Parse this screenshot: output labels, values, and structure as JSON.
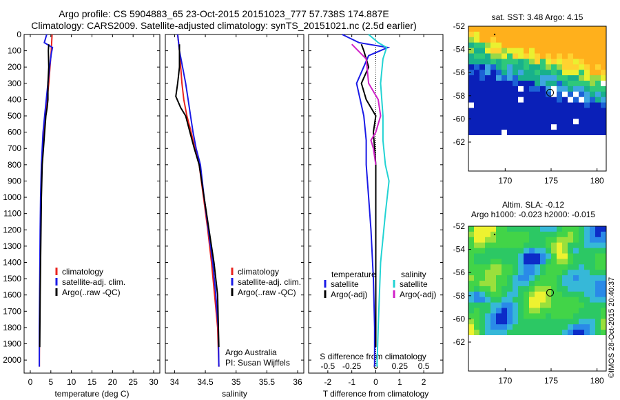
{
  "title": {
    "line1": "Argo profile: CS 5904883_65 23-Oct-2015 20151023_777 57.738S 174.887E",
    "line2": "Climatology: CARS2009. Satellite-adjusted climatology: synTS_20151021.nc (2.5d earlier)"
  },
  "colors": {
    "climatology": "#e8231e",
    "satellite": "#1a1ae6",
    "argo": "#000000",
    "sal_satellite": "#22d3d3",
    "sal_argo": "#d020c8"
  },
  "credit": "©IMOS 28-Oct-2015 20:40:37",
  "chart_data": [
    {
      "type": "line",
      "panel": "temperature",
      "xlabel": "temperature (deg C)",
      "ylabel": "",
      "xlim": [
        -1.5,
        31.5
      ],
      "ylim": [
        2080,
        0
      ],
      "xticks": [
        "0",
        "5",
        "10",
        "15",
        "20",
        "25",
        "30"
      ],
      "yticks": [
        "0",
        "100",
        "200",
        "300",
        "400",
        "500",
        "600",
        "700",
        "800",
        "900",
        "1000",
        "1100",
        "1200",
        "1300",
        "1400",
        "1500",
        "1600",
        "1700",
        "1800",
        "1900",
        "2000"
      ],
      "legend": [
        "climatology",
        "satellite-adj. clim.",
        "Argo(..raw -QC)"
      ],
      "legend_placement": "lower-middle",
      "series": [
        {
          "name": "climatology",
          "color_key": "climatology",
          "x": [
            5.3,
            5.1,
            4.8,
            4.5,
            4.1,
            3.7,
            3.3,
            3.0,
            2.8,
            2.6,
            2.5,
            2.4,
            2.3,
            2.25,
            2.2,
            2.2
          ],
          "y": [
            0,
            100,
            200,
            300,
            400,
            500,
            600,
            700,
            800,
            1000,
            1200,
            1400,
            1600,
            1800,
            2000,
            2040
          ]
        },
        {
          "name": "satellite-adj. clim.",
          "color_key": "satellite",
          "x": [
            4.0,
            3.4,
            4.1,
            5.4,
            5.1,
            4.7,
            4.3,
            3.9,
            3.5,
            3.1,
            2.9,
            2.7,
            2.5,
            2.4,
            2.3,
            2.2,
            2.2
          ],
          "y": [
            0,
            50,
            60,
            80,
            120,
            200,
            300,
            400,
            500,
            600,
            700,
            800,
            1000,
            1200,
            1500,
            1800,
            2040
          ]
        },
        {
          "name": "Argo(..raw -QC)",
          "color_key": "argo",
          "x": [
            4.5,
            4.4,
            4.5,
            4.3,
            4.3,
            4.1,
            3.8,
            3.5,
            3.2,
            2.9,
            2.7,
            2.6,
            2.5,
            2.4,
            2.3
          ],
          "y": [
            60,
            100,
            200,
            300,
            400,
            450,
            500,
            600,
            700,
            800,
            1000,
            1200,
            1400,
            1600,
            1920
          ]
        }
      ]
    },
    {
      "type": "line",
      "panel": "salinity",
      "xlabel": "salinity",
      "xlim": [
        33.85,
        36.1
      ],
      "ylim": [
        2080,
        0
      ],
      "xticks": [
        "34",
        "34.5",
        "35",
        "35.5",
        "36"
      ],
      "legend": [
        "climatology",
        "satellite-adj. clim.",
        "Argo(..raw -QC)"
      ],
      "legend_placement": "lower-right",
      "annotation": [
        "Argo Australia",
        "PI: Susan Wijffels"
      ],
      "series": [
        {
          "name": "climatology",
          "color_key": "climatology",
          "x": [
            34.05,
            34.08,
            34.1,
            34.12,
            34.15,
            34.2,
            34.27,
            34.33,
            34.4,
            34.47,
            34.54,
            34.6,
            34.65,
            34.7,
            34.72
          ],
          "y": [
            0,
            100,
            200,
            300,
            400,
            500,
            600,
            700,
            800,
            1000,
            1200,
            1400,
            1600,
            1800,
            2040
          ]
        },
        {
          "name": "satellite-adj. clim.",
          "color_key": "satellite",
          "x": [
            34.05,
            34.08,
            34.13,
            34.18,
            34.22,
            34.26,
            34.3,
            34.35,
            34.42,
            34.48,
            34.55,
            34.62,
            34.67,
            34.71,
            34.72
          ],
          "y": [
            0,
            100,
            200,
            300,
            400,
            500,
            600,
            700,
            800,
            1000,
            1200,
            1400,
            1600,
            1800,
            2040
          ]
        },
        {
          "name": "Argo(..raw -QC)",
          "color_key": "argo",
          "x": [
            34.08,
            34.08,
            34.05,
            34.02,
            34.1,
            34.18,
            34.25,
            34.32,
            34.4,
            34.48,
            34.56,
            34.64,
            34.7,
            34.72
          ],
          "y": [
            60,
            200,
            300,
            380,
            450,
            500,
            600,
            700,
            800,
            1000,
            1200,
            1400,
            1600,
            1920
          ]
        }
      ]
    },
    {
      "type": "line",
      "panel": "difference",
      "xlabel": "T difference from climatology",
      "xlabel_top": "S difference from climatology",
      "xlim": [
        -2.8,
        2.8
      ],
      "ylim": [
        2080,
        0
      ],
      "xticks": [
        "-2",
        "-1",
        "0",
        "1",
        "2"
      ],
      "xticks_top": [
        "-0.5",
        "-0.25",
        "0",
        "0.25",
        "0.5"
      ],
      "legend_groups": [
        {
          "heading": "temperature",
          "items": [
            "satellite",
            "Argo(-adj)"
          ]
        },
        {
          "heading": "salinity",
          "items": [
            "satellite",
            "Argo(-adj)"
          ]
        }
      ],
      "series": [
        {
          "name": "satellite",
          "group": "temperature",
          "color_key": "satellite",
          "x": [
            -1.4,
            -0.7,
            0.5,
            -0.3,
            -0.8,
            -0.5,
            -0.4,
            -0.4,
            -0.3,
            -0.2,
            -0.1,
            -0.05,
            -0.05
          ],
          "y": [
            0,
            50,
            80,
            130,
            300,
            500,
            650,
            800,
            1000,
            1200,
            1500,
            1800,
            2040
          ]
        },
        {
          "name": "Argo(-adj)",
          "group": "temperature",
          "color_key": "argo",
          "x": [
            -0.6,
            -0.5,
            -0.3,
            -0.6,
            -0.4,
            0.0,
            -0.1,
            0.0,
            0.0,
            0.0,
            0.0,
            0.0
          ],
          "y": [
            60,
            100,
            200,
            300,
            400,
            500,
            600,
            800,
            1000,
            1200,
            1600,
            1920
          ]
        },
        {
          "name": "satellite",
          "group": "salinity",
          "color_key": "sal_satellite",
          "x": [
            -0.3,
            0.1,
            0.45,
            0.3,
            0.2,
            0.3,
            0.3,
            0.4,
            0.55,
            0.4,
            0.2,
            0.1,
            0.05
          ],
          "y": [
            0,
            50,
            80,
            150,
            300,
            500,
            650,
            800,
            900,
            1100,
            1400,
            1800,
            2040
          ]
        },
        {
          "name": "Argo(-adj)",
          "group": "salinity",
          "color_key": "sal_argo",
          "x": [
            -1.0,
            -0.4,
            -0.3,
            0.1,
            0.2,
            0.1,
            0.0,
            -0.2,
            -0.1,
            0.0
          ],
          "y": [
            60,
            150,
            300,
            400,
            500,
            550,
            600,
            650,
            700,
            800
          ]
        }
      ]
    },
    {
      "type": "heatmap",
      "panel": "sst-map",
      "title": "sat. SST: 3.48 Argo: 4.15",
      "xlim": [
        166,
        181
      ],
      "ylim": [
        -64.5,
        -52
      ],
      "xticks": [
        "170",
        "175",
        "180"
      ],
      "yticks": [
        "-52",
        "-54",
        "-56",
        "-58",
        "-60",
        "-62"
      ],
      "data_extent_lat": [
        -60,
        -52
      ],
      "profile_marker": {
        "lon": 174.887,
        "lat": -57.738
      }
    },
    {
      "type": "heatmap",
      "panel": "sla-map",
      "title": "Altim. SLA: -0.12",
      "subtitle": "Argo h1000: -0.023 h2000: -0.015",
      "xlim": [
        166,
        181
      ],
      "ylim": [
        -64.5,
        -52
      ],
      "xticks": [
        "170",
        "175",
        "180"
      ],
      "yticks": [
        "-52",
        "-54",
        "-56",
        "-58",
        "-60",
        "-62"
      ],
      "data_extent_lat": [
        -60,
        -52
      ],
      "profile_marker": {
        "lon": 174.887,
        "lat": -57.738
      }
    }
  ]
}
